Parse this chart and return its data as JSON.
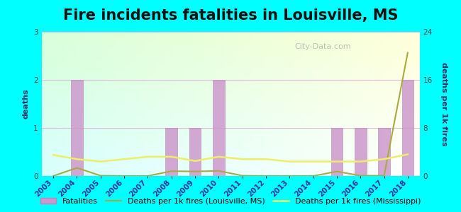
{
  "title": "Fire incidents fatalities in Louisville, MS",
  "background_color": "#00ffff",
  "plot_bg_color": "#e8f8ee",
  "years": [
    2003,
    2004,
    2005,
    2006,
    2007,
    2008,
    2009,
    2010,
    2011,
    2012,
    2013,
    2014,
    2015,
    2016,
    2017,
    2018
  ],
  "fatalities": [
    0,
    2,
    0,
    0,
    0,
    1,
    1,
    2,
    0,
    0,
    0,
    0,
    1,
    1,
    1,
    2
  ],
  "deaths_per_1k_louisville": [
    0.0,
    1.35,
    0.05,
    0.0,
    0.0,
    0.8,
    0.75,
    0.85,
    0.05,
    0.0,
    0.0,
    0.0,
    0.75,
    0.05,
    0.05,
    20.5
  ],
  "deaths_per_1k_mississippi": [
    3.5,
    2.8,
    2.4,
    2.8,
    3.2,
    3.2,
    2.5,
    3.2,
    2.8,
    2.8,
    2.4,
    2.4,
    2.4,
    2.4,
    2.8,
    3.6
  ],
  "bar_color": "#cc99cc",
  "bar_edge_color": "#bb88bb",
  "line_color_louisville": "#aaaa44",
  "line_color_mississippi": "#eeee66",
  "ylabel_left": "deaths",
  "ylabel_right": "deaths per 1k fires",
  "ylim_left": [
    0,
    3
  ],
  "ylim_right": [
    0,
    24
  ],
  "yticks_left": [
    0,
    1,
    2,
    3
  ],
  "yticks_right": [
    0,
    8,
    16,
    24
  ],
  "watermark": "City-Data.com",
  "title_fontsize": 15,
  "axis_fontsize": 8,
  "tick_fontsize": 7.5,
  "legend_fontsize": 8
}
